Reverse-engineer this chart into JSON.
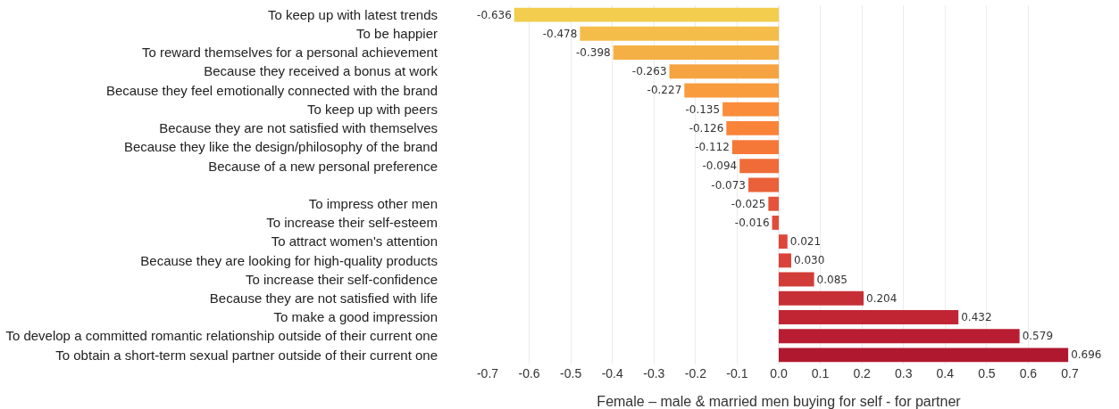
{
  "chart_data": {
    "type": "bar",
    "orientation": "horizontal",
    "xlabel": "Female – male & married men buying for self - for partner",
    "categories": [
      "To keep up with latest trends",
      "To be happier",
      "To reward themselves for a personal achievement",
      "Because they received a bonus at work",
      "Because they feel emotionally connected with the brand",
      "To keep up with peers",
      "Because they are not satisfied with themselves",
      "Because they like the design/philosophy of the brand",
      "Because of a new personal preference",
      null,
      "To impress other men",
      "To increase their self-esteem",
      "To attract women's attention",
      "Because they are looking for high-quality products",
      "To increase their self-confidence",
      "Because they are not satisfied with life",
      "To make a good impression",
      "To develop a committed romantic relationship outside of their current one",
      "To obtain a short-term sexual partner outside of their current one"
    ],
    "values": [
      -0.636,
      -0.478,
      -0.398,
      -0.263,
      -0.227,
      -0.135,
      -0.126,
      -0.112,
      -0.094,
      -0.073,
      -0.025,
      -0.016,
      0.021,
      0.03,
      0.085,
      0.204,
      0.432,
      0.579,
      0.696
    ],
    "value_labels": [
      "-0.636",
      "-0.478",
      "-0.398",
      "-0.263",
      "-0.227",
      "-0.135",
      "-0.126",
      "-0.112",
      "-0.094",
      "-0.073",
      "-0.025",
      "-0.016",
      "0.021",
      "0.030",
      "0.085",
      "0.204",
      "0.432",
      "0.579",
      "0.696"
    ],
    "colors": [
      "#f2cd4e",
      "#f4bd4a",
      "#f5b045",
      "#f6a442",
      "#f89c3e",
      "#fa8c3b",
      "#fa833a",
      "#f67839",
      "#ef6c39",
      "#ea6139",
      "#e4533a",
      "#e14b3a",
      "#de4639",
      "#da4339",
      "#d23c38",
      "#c72f36",
      "#c12534",
      "#b81d32",
      "#b0182f"
    ],
    "xlim": [
      -0.7,
      0.7
    ],
    "xticks": [
      -0.7,
      -0.6,
      -0.5,
      -0.4,
      -0.3,
      -0.2,
      -0.1,
      {
        "value": 0,
        "label": "0.0"
      },
      0.1,
      0.2,
      0.3,
      0.4,
      0.5,
      0.6,
      0.7
    ],
    "grid": "x"
  }
}
